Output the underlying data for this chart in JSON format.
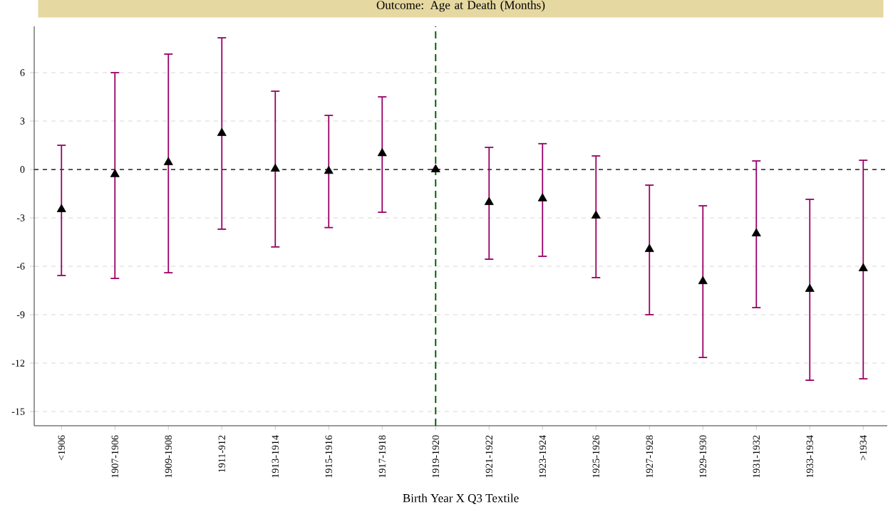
{
  "chart_data": {
    "type": "scatter",
    "title": "Outcome: Age at Death (Months)",
    "xlabel": "Birth Year X Q3 Textile",
    "categories": [
      "<1906",
      "1907-1906",
      "1909-1908",
      "1911-912",
      "1913-1914",
      "1915-1916",
      "1917-1918",
      "1919-1920",
      "1921-1922",
      "1923-1924",
      "1925-1926",
      "1927-1928",
      "1929-1930",
      "1931-1932",
      "1933-1934",
      ">1934"
    ],
    "values": [
      -2.47,
      -0.3,
      0.44,
      2.25,
      0.04,
      -0.1,
      1.0,
      0.0,
      -2.03,
      -1.8,
      -2.87,
      -4.94,
      -6.93,
      -3.97,
      -7.41,
      -6.13
    ],
    "errors": [
      [
        -6.57,
        1.5
      ],
      [
        -6.75,
        6.0
      ],
      [
        -6.4,
        7.15
      ],
      [
        -3.7,
        8.16
      ],
      [
        -4.8,
        4.85
      ],
      [
        -3.6,
        3.35
      ],
      [
        -2.65,
        4.5
      ],
      null,
      [
        -5.56,
        1.37
      ],
      [
        -5.38,
        1.6
      ],
      [
        -6.7,
        0.84
      ],
      [
        -9.0,
        -0.97
      ],
      [
        -11.65,
        -2.25
      ],
      [
        -8.56,
        0.53
      ],
      [
        -13.06,
        -1.85
      ],
      [
        -12.97,
        0.57
      ]
    ],
    "color": "#000000",
    "marker": "triangle",
    "ylim": [
      -15.88,
      8.87
    ],
    "yticks": [
      -15,
      -12,
      -9,
      -6,
      -3,
      0,
      3,
      6
    ],
    "grid": "y",
    "ref_lines": [
      {
        "axis": "y",
        "value": 0,
        "color": "#000000",
        "line_style": "dashed"
      },
      {
        "axis": "x",
        "value": "1919-1920",
        "color": "#006400",
        "line_style": "dashed"
      }
    ]
  }
}
